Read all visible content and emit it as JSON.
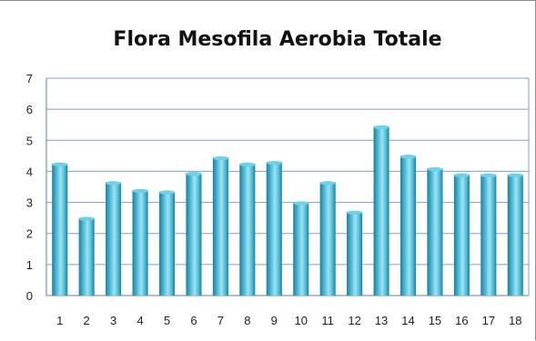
{
  "chart_data": {
    "type": "bar",
    "title": "Flora Mesofila Aerobia Totale",
    "xlabel": "",
    "ylabel": "",
    "categories": [
      "1",
      "2",
      "3",
      "4",
      "5",
      "6",
      "7",
      "8",
      "9",
      "10",
      "11",
      "12",
      "13",
      "14",
      "15",
      "16",
      "17",
      "18"
    ],
    "values": [
      4.25,
      2.5,
      3.65,
      3.4,
      3.35,
      3.95,
      4.45,
      4.25,
      4.3,
      3.0,
      3.65,
      2.7,
      5.45,
      4.5,
      4.1,
      3.9,
      3.9,
      3.9
    ],
    "ylim": [
      0,
      7
    ],
    "yticks": [
      "0",
      "1",
      "2",
      "3",
      "4",
      "5",
      "6",
      "7"
    ],
    "grid": true,
    "legend": "none",
    "colors": {
      "bar_light": "#9fe3f2",
      "bar_mid": "#4fbcd8",
      "bar_dark": "#1f7e9e",
      "bar_top": "#6fd0e6",
      "gridline": "#7f9fc9",
      "axis": "#5b7fb0"
    }
  }
}
